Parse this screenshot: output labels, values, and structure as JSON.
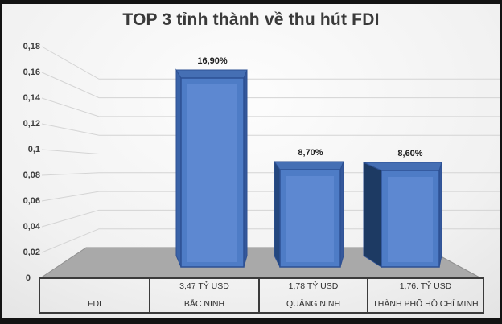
{
  "title": "TOP 3 tỉnh thành về thu hút FDI",
  "chart_data": {
    "type": "bar",
    "title": "TOP 3 tỉnh thành về thu hút FDI",
    "categories": [
      "BẮC NINH",
      "QUẢNG NINH",
      "THÀNH PHỐ HỒ CHÍ MINH"
    ],
    "values": [
      16.9,
      8.7,
      8.6
    ],
    "value_labels": [
      "16,90%",
      "8,70%",
      "8,60%"
    ],
    "amounts": [
      "3,47 TỶ USD",
      "1,78 TỶ USD",
      "1,76. TỶ USD"
    ],
    "series_name": "FDI",
    "yticks": [
      "0,02",
      "0,04",
      "0,06",
      "0,08",
      "0,1",
      "0,12",
      "0,14",
      "0,16",
      "0,18"
    ],
    "zero_label": "0",
    "ylim": [
      0,
      0.18
    ],
    "grid": true,
    "legend": "none",
    "style": "3d-column",
    "bar_color": "#4e7cc6"
  },
  "table": {
    "columns": [
      {
        "value": "",
        "label": "FDI"
      },
      {
        "value": "3,47 TỶ USD",
        "label": "BẮC NINH"
      },
      {
        "value": "1,78 TỶ USD",
        "label": "QUẢNG NINH"
      },
      {
        "value": "1,76. TỶ USD",
        "label": "THÀNH PHỐ HỒ CHÍ MINH"
      }
    ]
  },
  "colors": {
    "bar_front": "#4e7cc6",
    "bar_inner": "#5d88d1",
    "bar_top": "#456fb4",
    "bar_edge": "#2d5093",
    "bar_side_right": "#35589b",
    "bar_sides_left": [
      "#3a63a8",
      "#24477e",
      "#1d3a63"
    ],
    "floor": "#a9a9a9",
    "floor_edge": "#8f8f8f",
    "gridline": "#d4d4d4",
    "frame": "#131313"
  }
}
